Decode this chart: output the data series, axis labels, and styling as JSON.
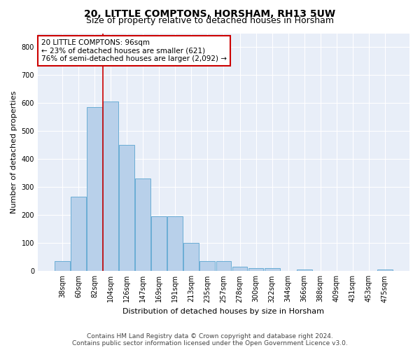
{
  "title": "20, LITTLE COMPTONS, HORSHAM, RH13 5UW",
  "subtitle": "Size of property relative to detached houses in Horsham",
  "xlabel": "Distribution of detached houses by size in Horsham",
  "ylabel": "Number of detached properties",
  "categories": [
    "38sqm",
    "60sqm",
    "82sqm",
    "104sqm",
    "126sqm",
    "147sqm",
    "169sqm",
    "191sqm",
    "213sqm",
    "235sqm",
    "257sqm",
    "278sqm",
    "300sqm",
    "322sqm",
    "344sqm",
    "366sqm",
    "388sqm",
    "409sqm",
    "431sqm",
    "453sqm",
    "475sqm"
  ],
  "values": [
    37,
    265,
    585,
    605,
    450,
    330,
    195,
    195,
    100,
    37,
    35,
    15,
    12,
    10,
    0,
    7,
    0,
    0,
    0,
    0,
    7
  ],
  "bar_color": "#b8d0ea",
  "bar_edge_color": "#6aadd5",
  "vline_color": "#cc0000",
  "vline_x": 2.5,
  "annotation_line0": "20 LITTLE COMPTONS: 96sqm",
  "annotation_line1": "← 23% of detached houses are smaller (621)",
  "annotation_line2": "76% of semi-detached houses are larger (2,092) →",
  "annotation_box_facecolor": "#ffffff",
  "annotation_box_edgecolor": "#cc0000",
  "background_color": "#e8eef8",
  "fig_facecolor": "#ffffff",
  "grid_color": "#ffffff",
  "ylim": [
    0,
    850
  ],
  "yticks": [
    0,
    100,
    200,
    300,
    400,
    500,
    600,
    700,
    800
  ],
  "title_fontsize": 10,
  "subtitle_fontsize": 9,
  "xlabel_fontsize": 8,
  "ylabel_fontsize": 8,
  "tick_fontsize": 7,
  "annot_fontsize": 7.5,
  "footer_fontsize": 6.5,
  "footer_line1": "Contains HM Land Registry data © Crown copyright and database right 2024.",
  "footer_line2": "Contains public sector information licensed under the Open Government Licence v3.0."
}
